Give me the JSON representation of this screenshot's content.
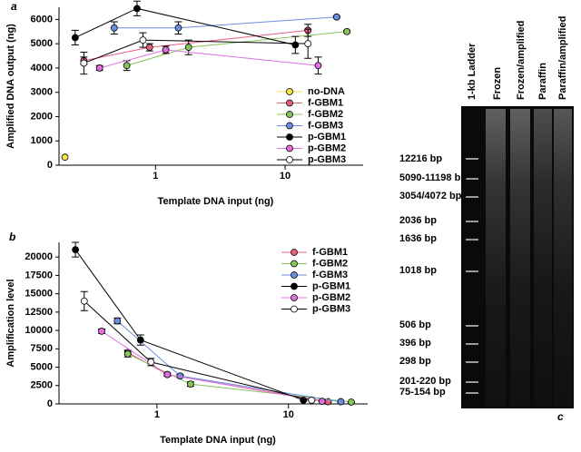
{
  "chart_data": [
    {
      "type": "line",
      "label": "a",
      "xlabel": "Template DNA input (ng)",
      "ylabel": "Amplified DNA output (ng)",
      "xscale": "log",
      "xlim": [
        0.18,
        40
      ],
      "xticks": [
        1,
        10
      ],
      "ylim": [
        0,
        6500
      ],
      "yticks": [
        0,
        1000,
        2000,
        3000,
        4000,
        5000,
        6000
      ],
      "legend": "lower right",
      "series": [
        {
          "name": "no-DNA",
          "color": "#f2e64a",
          "x": [
            0.2
          ],
          "values": [
            330
          ],
          "errors": [
            0
          ]
        },
        {
          "name": "f-GBM1",
          "color": "#e8607a",
          "x": [
            0.28,
            0.9,
            15
          ],
          "values": [
            4300,
            4850,
            5550
          ],
          "errors": [
            150,
            150,
            250
          ]
        },
        {
          "name": "f-GBM2",
          "color": "#86c45c",
          "x": [
            0.6,
            1.8,
            30
          ],
          "values": [
            4100,
            4850,
            5500
          ],
          "errors": [
            200,
            300,
            50
          ]
        },
        {
          "name": "f-GBM3",
          "color": "#6a8ee0",
          "x": [
            0.48,
            1.5,
            25
          ],
          "values": [
            5650,
            5650,
            6100
          ],
          "errors": [
            250,
            250,
            50
          ]
        },
        {
          "name": "p-GBM1",
          "color": "#000000",
          "x": [
            0.24,
            0.72,
            12
          ],
          "values": [
            5250,
            6450,
            4950
          ],
          "errors": [
            300,
            300,
            350
          ]
        },
        {
          "name": "p-GBM2",
          "color": "#e070e0",
          "x": [
            0.37,
            1.2,
            18
          ],
          "values": [
            4000,
            4750,
            4100
          ],
          "errors": [
            100,
            150,
            350
          ]
        },
        {
          "name": "p-GBM3",
          "color": "#ffffff",
          "x": [
            0.28,
            0.8,
            15
          ],
          "values": [
            4200,
            5150,
            5000
          ],
          "errors": [
            450,
            300,
            600
          ]
        }
      ]
    },
    {
      "type": "line",
      "label": "b",
      "xlabel": "Template DNA input (ng)",
      "ylabel": "Amplification level",
      "xscale": "log",
      "xlim": [
        0.18,
        40
      ],
      "xticks": [
        1,
        10
      ],
      "ylim": [
        0,
        22000
      ],
      "yticks": [
        0,
        2500,
        5000,
        7500,
        10000,
        12500,
        15000,
        17500,
        20000
      ],
      "legend": "upper right",
      "series": [
        {
          "name": "f-GBM1",
          "color": "#e8607a",
          "x": [
            0.6,
            1.2,
            20
          ],
          "values": [
            7000,
            4000,
            300
          ],
          "errors": [
            300,
            200,
            50
          ]
        },
        {
          "name": "f-GBM2",
          "color": "#86c45c",
          "x": [
            0.6,
            1.8,
            30
          ],
          "values": [
            6800,
            2700,
            250
          ],
          "errors": [
            400,
            300,
            50
          ]
        },
        {
          "name": "f-GBM3",
          "color": "#6a8ee0",
          "x": [
            0.5,
            1.5,
            25
          ],
          "values": [
            11300,
            3800,
            300
          ],
          "errors": [
            400,
            200,
            50
          ]
        },
        {
          "name": "p-GBM1",
          "color": "#000000",
          "x": [
            0.24,
            0.75,
            13
          ],
          "values": [
            21000,
            8700,
            500
          ],
          "errors": [
            1000,
            700,
            100
          ]
        },
        {
          "name": "p-GBM2",
          "color": "#e070e0",
          "x": [
            0.38,
            1.2,
            18
          ],
          "values": [
            9900,
            4000,
            350
          ],
          "errors": [
            300,
            200,
            50
          ]
        },
        {
          "name": "p-GBM3",
          "color": "#ffffff",
          "x": [
            0.28,
            0.9,
            15
          ],
          "values": [
            14000,
            5700,
            500
          ],
          "errors": [
            1300,
            500,
            100
          ]
        }
      ]
    }
  ],
  "gel": {
    "label": "c",
    "lanes": [
      "1-kb Ladder",
      "Frozen",
      "Frozen/amplified",
      "Paraffin",
      "Paraffin/amplified"
    ],
    "markers": [
      "12216 bp",
      "5090-11198 bp",
      "3054/4072 bp",
      "2036 bp",
      "1636 bp",
      "1018 bp",
      "506 bp",
      "396 bp",
      "298 bp",
      "201-220 bp",
      "75-154 bp"
    ]
  }
}
